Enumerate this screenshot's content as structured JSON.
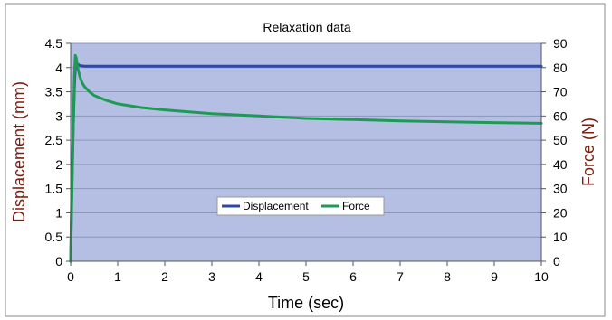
{
  "chart_data": {
    "type": "line",
    "title": "Relaxation data",
    "xlabel": "Time (sec)",
    "ylabel": "Displacement (mm)",
    "y2label": "Force (N)",
    "xlim": [
      0,
      10
    ],
    "ylim": [
      0,
      4.5
    ],
    "y2lim": [
      0,
      90
    ],
    "x_ticks": [
      "0",
      "1",
      "2",
      "3",
      "4",
      "5",
      "6",
      "7",
      "8",
      "9",
      "10"
    ],
    "y_ticks": [
      "0",
      "0.5",
      "1",
      "1.5",
      "2",
      "2.5",
      "3",
      "3.5",
      "4",
      "4.5"
    ],
    "y2_ticks": [
      "0",
      "10",
      "20",
      "30",
      "40",
      "50",
      "60",
      "70",
      "80",
      "90"
    ],
    "grid": true,
    "legend_position": "center",
    "plot_background": "#b4bfe3",
    "axis_title_color": "#7a1c10",
    "series": [
      {
        "name": "Displacement",
        "axis": "left",
        "color": "#2e48a6",
        "x": [
          0,
          0.02,
          0.05,
          0.08,
          0.1,
          0.12,
          0.15,
          0.2,
          0.3,
          0.5,
          1,
          2,
          3,
          4,
          5,
          6,
          7,
          8,
          9,
          10
        ],
        "y": [
          0,
          1.2,
          2.6,
          3.6,
          4.0,
          4.1,
          4.07,
          4.04,
          4.03,
          4.03,
          4.03,
          4.03,
          4.03,
          4.03,
          4.03,
          4.03,
          4.03,
          4.03,
          4.03,
          4.03
        ]
      },
      {
        "name": "Force",
        "axis": "right",
        "color": "#1e9a55",
        "x": [
          0,
          0.02,
          0.05,
          0.08,
          0.1,
          0.12,
          0.15,
          0.2,
          0.25,
          0.3,
          0.4,
          0.5,
          0.75,
          1,
          1.5,
          2,
          3,
          4,
          5,
          6,
          7,
          8,
          9,
          10
        ],
        "y": [
          0,
          20,
          50,
          77,
          85,
          84,
          80,
          76,
          73.5,
          72,
          70,
          68.5,
          66.5,
          65,
          63.5,
          62.5,
          61,
          60,
          59,
          58.5,
          58,
          57.6,
          57.3,
          57
        ]
      }
    ]
  }
}
